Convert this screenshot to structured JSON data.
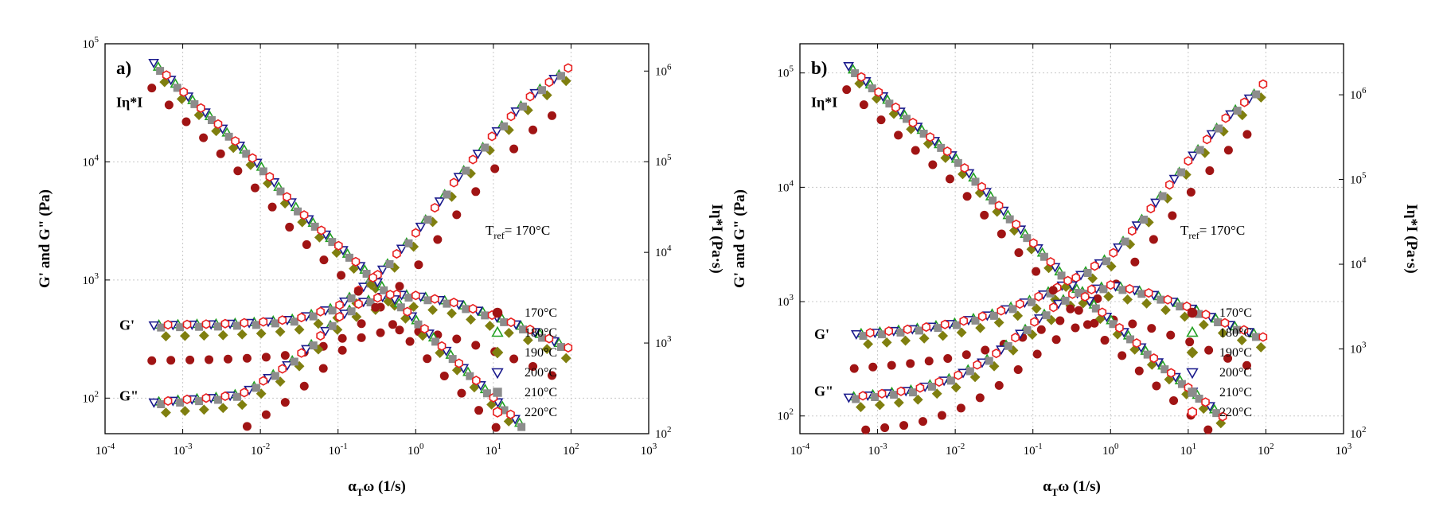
{
  "chart_data": [
    {
      "type": "scatter",
      "panel_label": "a)",
      "xlabel": "αTω (1/s)",
      "ylabel": "G' and G\" (Pa)",
      "y2label": "Iη*I (Pa·s)",
      "xscale": "log",
      "yscale": "log",
      "y2scale": "log",
      "xlim": [
        0.0001,
        1000
      ],
      "ylim": [
        50,
        100000
      ],
      "y2lim": [
        100,
        2000000
      ],
      "x_ticks": [
        0.0001,
        0.001,
        0.01,
        0.1,
        1,
        10,
        100,
        1000
      ],
      "y_ticks": [
        100,
        1000,
        10000,
        100000
      ],
      "y2_ticks": [
        100,
        1000,
        10000,
        100000,
        1000000
      ],
      "grid": true,
      "legend_position": "bottom-right",
      "annotation": {
        "prefix": "T",
        "sub": "ref",
        "text": "= 170°C"
      },
      "curve_labels": {
        "eta": "Iη*I",
        "gp": "G'",
        "gpp": "G\""
      },
      "curves": [
        {
          "key": "gp",
          "axis": "left",
          "shift": [
            0.5,
            1.0,
            0.8,
            1.0,
            0.95,
            1.0
          ],
          "points": [
            [
              0.0004,
              415
            ],
            [
              0.001,
              420
            ],
            [
              0.003,
              425
            ],
            [
              0.01,
              440
            ],
            [
              0.03,
              470
            ],
            [
              0.1,
              600
            ],
            [
              0.3,
              1050
            ],
            [
              1,
              2500
            ],
            [
              3,
              6500
            ],
            [
              10,
              17000
            ],
            [
              30,
              36000
            ],
            [
              100,
              65000
            ]
          ]
        },
        {
          "key": "gpp",
          "axis": "left",
          "shift": [
            0.5,
            1.0,
            0.8,
            1.0,
            0.95,
            1.0
          ],
          "points": [
            [
              0.0004,
              92
            ],
            [
              0.001,
              97
            ],
            [
              0.003,
              102
            ],
            [
              0.006,
              110
            ],
            [
              0.01,
              135
            ],
            [
              0.02,
              180
            ],
            [
              0.05,
              300
            ],
            [
              0.1,
              480
            ],
            [
              0.2,
              650
            ],
            [
              0.5,
              760
            ],
            [
              1,
              740
            ],
            [
              3,
              650
            ],
            [
              10,
              500
            ],
            [
              30,
              380
            ],
            [
              100,
              260
            ]
          ]
        },
        {
          "key": "eta",
          "axis": "right",
          "shift": [
            0.5,
            1.0,
            0.8,
            1.0,
            0.95,
            1.0
          ],
          "points": [
            [
              0.0004,
              1300000
            ],
            [
              0.001,
              600000
            ],
            [
              0.003,
              250000
            ],
            [
              0.01,
              90000
            ],
            [
              0.03,
              30000
            ],
            [
              0.1,
              12000
            ],
            [
              0.3,
              5000
            ],
            [
              1,
              1800
            ],
            [
              3,
              700
            ],
            [
              10,
              250
            ],
            [
              30,
              100
            ]
          ]
        }
      ],
      "series": [
        {
          "name": "170°C",
          "color": "#a01414",
          "marker": "circle-filled"
        },
        {
          "name": "180°C",
          "color": "#22a022",
          "marker": "triangle-up-open"
        },
        {
          "name": "190°C",
          "color": "#7f7f0f",
          "marker": "diamond-filled"
        },
        {
          "name": "200°C",
          "color": "#1a1a8c",
          "marker": "triangle-down-open"
        },
        {
          "name": "210°C",
          "color": "#8c8c8c",
          "marker": "square-filled"
        },
        {
          "name": "220°C",
          "color": "#e82020",
          "marker": "hexagon-open"
        }
      ]
    },
    {
      "type": "scatter",
      "panel_label": "b)",
      "xlabel": "αTω (1/s)",
      "ylabel": "G' and G\" (Pa)",
      "y2label": "Iη*I (Pa·s)",
      "xscale": "log",
      "yscale": "log",
      "y2scale": "log",
      "xlim": [
        0.0001,
        1000
      ],
      "ylim": [
        70,
        180000
      ],
      "y2lim": [
        100,
        4000000
      ],
      "x_ticks": [
        0.0001,
        0.001,
        0.01,
        0.1,
        1,
        10,
        100,
        1000
      ],
      "y_ticks": [
        100,
        1000,
        10000,
        100000
      ],
      "y2_ticks": [
        100,
        1000,
        10000,
        100000,
        1000000
      ],
      "grid": true,
      "legend_position": "bottom-right",
      "annotation": {
        "prefix": "T",
        "sub": "ref",
        "text": "= 170°C"
      },
      "curve_labels": {
        "eta": "Iη*I",
        "gp": "G'",
        "gpp": "G\""
      },
      "curves": [
        {
          "key": "gp",
          "axis": "left",
          "shift": [
            0.5,
            1.0,
            0.8,
            1.0,
            0.95,
            1.0
          ],
          "points": [
            [
              0.0005,
              520
            ],
            [
              0.001,
              540
            ],
            [
              0.003,
              580
            ],
            [
              0.01,
              650
            ],
            [
              0.03,
              780
            ],
            [
              0.1,
              1050
            ],
            [
              0.3,
              1500
            ],
            [
              1,
              2500
            ],
            [
              3,
              6000
            ],
            [
              10,
              17000
            ],
            [
              30,
              40000
            ],
            [
              70,
              65000
            ],
            [
              100,
              85000
            ]
          ]
        },
        {
          "key": "gpp",
          "axis": "left",
          "shift": [
            0.5,
            1.0,
            0.8,
            1.0,
            0.95,
            1.0
          ],
          "points": [
            [
              0.0004,
              145
            ],
            [
              0.001,
              155
            ],
            [
              0.003,
              170
            ],
            [
              0.01,
              220
            ],
            [
              0.03,
              330
            ],
            [
              0.1,
              650
            ],
            [
              0.3,
              1150
            ],
            [
              1,
              1400
            ],
            [
              3,
              1200
            ],
            [
              10,
              900
            ],
            [
              30,
              650
            ],
            [
              100,
              480
            ]
          ]
        },
        {
          "key": "eta",
          "axis": "right",
          "shift": [
            0.5,
            1.0,
            0.8,
            1.0,
            0.95,
            1.0
          ],
          "points": [
            [
              0.0004,
              2300000
            ],
            [
              0.001,
              1100000
            ],
            [
              0.003,
              450000
            ],
            [
              0.01,
              180000
            ],
            [
              0.03,
              60000
            ],
            [
              0.1,
              18000
            ],
            [
              0.3,
              6000
            ],
            [
              1,
              2200
            ],
            [
              3,
              900
            ],
            [
              10,
              350
            ],
            [
              30,
              150
            ]
          ]
        }
      ],
      "series": [
        {
          "name": "170°C",
          "color": "#a01414",
          "marker": "circle-filled"
        },
        {
          "name": "180°C",
          "color": "#22a022",
          "marker": "triangle-up-open"
        },
        {
          "name": "190°C",
          "color": "#7f7f0f",
          "marker": "diamond-filled"
        },
        {
          "name": "200°C",
          "color": "#1a1a8c",
          "marker": "triangle-down-open"
        },
        {
          "name": "210°C",
          "color": "#8c8c8c",
          "marker": "square-filled"
        },
        {
          "name": "220°C",
          "color": "#e82020",
          "marker": "hexagon-open"
        }
      ]
    }
  ]
}
